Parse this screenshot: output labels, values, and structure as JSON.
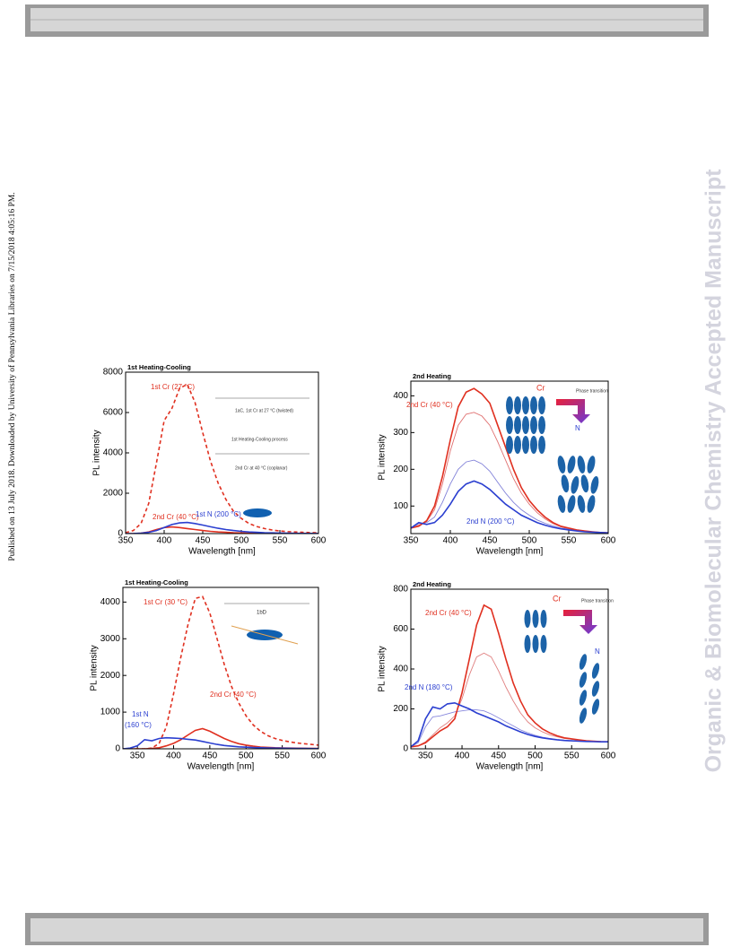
{
  "side_note": "Published on 13 July 2018. Downloaded by University of Pennsylvania Libraries on 7/15/2018 4:05:16 PM.",
  "watermark": "Organic & Biomolecular Chemistry Accepted Manuscript",
  "chart_data": [
    {
      "type": "line",
      "title": "1st Heating-Cooling",
      "x_label": "Wavelength [nm]",
      "y_label": "PL intensity",
      "x": [
        350,
        360,
        370,
        380,
        390,
        400,
        410,
        420,
        430,
        440,
        450,
        460,
        470,
        480,
        490,
        500,
        510,
        520,
        530,
        540,
        550,
        560,
        570,
        580,
        590,
        600
      ],
      "xlim": [
        350,
        600
      ],
      "xticks": [
        350,
        400,
        450,
        500,
        550,
        600
      ],
      "ylim": [
        0,
        8000
      ],
      "yticks": [
        0,
        2000,
        4000,
        6000,
        8000
      ],
      "series": [
        {
          "name": "1st Cr (27 °C)",
          "color": "#e03020",
          "dash": true,
          "values": [
            50,
            150,
            500,
            1500,
            3500,
            5600,
            6200,
            7200,
            7400,
            6500,
            5000,
            3600,
            2500,
            1700,
            1100,
            750,
            500,
            350,
            250,
            180,
            130,
            100,
            80,
            60,
            50,
            40
          ]
        },
        {
          "name": "2nd Cr (40 °C)",
          "color": "#e03020",
          "values": [
            0,
            0,
            20,
            80,
            200,
            300,
            330,
            300,
            250,
            200,
            150,
            110,
            80,
            60,
            40,
            30,
            20,
            15,
            10,
            10,
            5,
            5,
            5,
            5,
            5,
            5
          ]
        },
        {
          "name": "1st N (200 °C)",
          "color": "#2b3fd0",
          "values": [
            0,
            5,
            20,
            60,
            150,
            300,
            450,
            530,
            550,
            500,
            420,
            340,
            260,
            200,
            150,
            110,
            80,
            60,
            45,
            35,
            25,
            20,
            15,
            10,
            8,
            5
          ]
        }
      ],
      "annotations": [
        "1st Cr (27 °C)",
        "2nd Cr (40 °C)",
        "1st N (200 °C)",
        "1aC, 1st Cr at 27 °C (twisted)",
        "1st Heating-Cooling process",
        "2nd Cr at 40 °C (coplanar)"
      ]
    },
    {
      "type": "line",
      "title": "2nd Heating",
      "x_label": "Wavelength [nm]",
      "y_label": "PL intensity",
      "x": [
        350,
        360,
        370,
        380,
        390,
        400,
        410,
        420,
        430,
        440,
        450,
        460,
        470,
        480,
        490,
        500,
        510,
        520,
        530,
        540,
        550,
        560,
        570,
        580,
        590,
        600
      ],
      "xlim": [
        350,
        600
      ],
      "xticks": [
        350,
        400,
        450,
        500,
        550,
        600
      ],
      "ylim": [
        25,
        440
      ],
      "yticks": [
        100,
        200,
        300,
        400
      ],
      "series": [
        {
          "color": "#e07070",
          "values": [
            40,
            48,
            58,
            90,
            160,
            250,
            320,
            350,
            355,
            345,
            320,
            275,
            225,
            175,
            135,
            105,
            82,
            65,
            52,
            43,
            38,
            34,
            31,
            29,
            28,
            27
          ]
        },
        {
          "color": "#8080d8",
          "values": [
            40,
            52,
            55,
            70,
            110,
            160,
            200,
            220,
            225,
            215,
            195,
            165,
            135,
            110,
            90,
            75,
            62,
            53,
            46,
            40,
            37,
            33,
            31,
            29,
            28,
            27
          ]
        },
        {
          "name": "2nd Cr (40 °C)",
          "color": "#e03020",
          "values": [
            40,
            45,
            60,
            100,
            180,
            280,
            370,
            410,
            420,
            405,
            380,
            320,
            260,
            200,
            150,
            115,
            90,
            70,
            55,
            45,
            40,
            35,
            32,
            30,
            28,
            27
          ]
        },
        {
          "name": "2nd N (200 °C)",
          "color": "#2b3fd0",
          "values": [
            40,
            55,
            50,
            55,
            75,
            105,
            140,
            160,
            168,
            160,
            145,
            125,
            105,
            90,
            75,
            65,
            55,
            48,
            42,
            38,
            35,
            32,
            30,
            29,
            28,
            27
          ]
        }
      ],
      "annotations": [
        "2nd Cr (40 °C)",
        "2nd N (200 °C)",
        "Cr",
        "Phase transition",
        "N"
      ]
    },
    {
      "type": "line",
      "title": "1st Heating-Cooling",
      "x_label": "Wavelength [nm]",
      "y_label": "PL intensity",
      "x": [
        330,
        340,
        350,
        360,
        370,
        380,
        390,
        400,
        410,
        420,
        430,
        440,
        450,
        460,
        470,
        480,
        490,
        500,
        510,
        520,
        530,
        540,
        550,
        560,
        570,
        580,
        590,
        600
      ],
      "xlim": [
        330,
        600
      ],
      "xticks": [
        350,
        400,
        450,
        500,
        550,
        600
      ],
      "ylim": [
        0,
        4400
      ],
      "yticks": [
        0,
        1000,
        2000,
        3000,
        4000
      ],
      "series": [
        {
          "name": "1st Cr (30 °C)",
          "color": "#e03020",
          "dash": true,
          "values": [
            0,
            0,
            0,
            0,
            20,
            150,
            600,
            1500,
            2500,
            3400,
            4100,
            4150,
            3700,
            3000,
            2300,
            1700,
            1250,
            900,
            650,
            480,
            360,
            280,
            230,
            190,
            160,
            140,
            120,
            100
          ]
        },
        {
          "name": "2nd Cr (40 °C)",
          "color": "#e03020",
          "values": [
            0,
            0,
            0,
            0,
            10,
            30,
            80,
            150,
            250,
            380,
            500,
            550,
            480,
            380,
            280,
            200,
            140,
            100,
            70,
            50,
            40,
            30,
            25,
            20,
            18,
            15,
            12,
            10
          ]
        },
        {
          "name": "1st N (160 °C)",
          "color": "#2b3fd0",
          "values": [
            0,
            20,
            80,
            250,
            220,
            280,
            300,
            290,
            280,
            260,
            240,
            200,
            160,
            120,
            90,
            70,
            55,
            45,
            35,
            30,
            25,
            20,
            18,
            15,
            12,
            10,
            8,
            5
          ]
        }
      ],
      "annotations": [
        "1st Cr (30 °C)",
        "2nd Cr (40 °C)",
        "1st N",
        "(160 °C)",
        "1bD"
      ]
    },
    {
      "type": "line",
      "title": "2nd Heating",
      "x_label": "Wavelength [nm]",
      "y_label": "PL intensity",
      "x": [
        330,
        340,
        350,
        360,
        370,
        380,
        390,
        400,
        410,
        420,
        430,
        440,
        450,
        460,
        470,
        480,
        490,
        500,
        510,
        520,
        530,
        540,
        550,
        560,
        570,
        580,
        590,
        600
      ],
      "xlim": [
        330,
        600
      ],
      "xticks": [
        350,
        400,
        450,
        500,
        550,
        600
      ],
      "ylim": [
        0,
        800
      ],
      "yticks": [
        0,
        200,
        400,
        600,
        800
      ],
      "series": [
        {
          "color": "#e08080",
          "values": [
            10,
            15,
            35,
            70,
            105,
            130,
            165,
            250,
            370,
            460,
            480,
            460,
            390,
            310,
            240,
            180,
            135,
            105,
            85,
            70,
            60,
            52,
            48,
            43,
            39,
            37,
            35,
            34
          ]
        },
        {
          "color": "#8888dd",
          "values": [
            10,
            30,
            110,
            160,
            165,
            175,
            185,
            190,
            195,
            195,
            190,
            175,
            155,
            135,
            115,
            95,
            80,
            68,
            58,
            52,
            47,
            43,
            40,
            38,
            37,
            36,
            35,
            35
          ]
        },
        {
          "name": "2nd Cr (40 °C)",
          "color": "#e03020",
          "values": [
            10,
            15,
            30,
            60,
            90,
            110,
            150,
            280,
            450,
            620,
            720,
            700,
            580,
            450,
            330,
            240,
            170,
            130,
            100,
            80,
            65,
            55,
            50,
            45,
            40,
            38,
            36,
            35
          ]
        },
        {
          "name": "2nd N (180 °C)",
          "color": "#2b3fd0",
          "values": [
            10,
            40,
            150,
            210,
            200,
            225,
            230,
            215,
            200,
            180,
            165,
            150,
            135,
            115,
            100,
            85,
            72,
            62,
            55,
            50,
            45,
            42,
            40,
            38,
            37,
            36,
            35,
            35
          ]
        }
      ],
      "annotations": [
        "2nd Cr (40 °C)",
        "2nd N (180 °C)",
        "Cr",
        "Phase transition",
        "N"
      ]
    }
  ]
}
